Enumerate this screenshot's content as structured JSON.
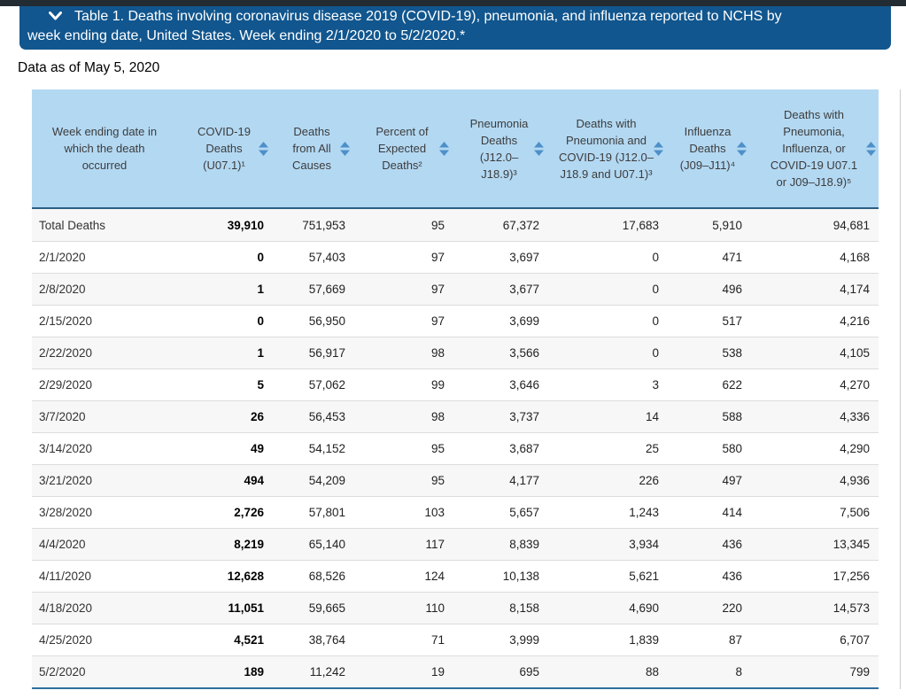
{
  "banner": {
    "title_line1": "Table 1. Deaths involving coronavirus disease 2019 (COVID-19), pneumonia, and influenza reported to NCHS by",
    "title_line2": "week ending date, United States. Week ending 2/1/2020 to 5/2/2020.*",
    "background_color": "#11568e"
  },
  "data_as_of": "Data as of May 5, 2020",
  "table": {
    "columns": [
      {
        "key": "week-ending-date",
        "label": "Week ending date in which the death occurred",
        "sortable": false
      },
      {
        "key": "covid19-deaths",
        "label": "COVID-19 Deaths (U07.1)¹",
        "sortable": true
      },
      {
        "key": "deaths-all-causes",
        "label": "Deaths from All Causes",
        "sortable": true
      },
      {
        "key": "percent-expected-deaths",
        "label": "Percent of Expected Deaths²",
        "sortable": true
      },
      {
        "key": "pneumonia-deaths",
        "label": "Pneumonia Deaths (J12.0–J18.9)³",
        "sortable": true
      },
      {
        "key": "pneumonia-and-covid19-deaths",
        "label": "Deaths with Pneumonia and COVID-19 (J12.0–J18.9 and U07.1)³",
        "sortable": true
      },
      {
        "key": "influenza-deaths",
        "label": "Influenza Deaths (J09–J11)⁴",
        "sortable": true
      },
      {
        "key": "pneumonia-influenza-covid19-deaths",
        "label": "Deaths with Pneumonia, Influenza, or COVID-19 U07.1 or J09–J18.9)⁵",
        "sortable": true
      }
    ],
    "rows": [
      [
        "Total Deaths",
        "39,910",
        "751,953",
        "95",
        "67,372",
        "17,683",
        "5,910",
        "94,681"
      ],
      [
        "2/1/2020",
        "0",
        "57,403",
        "97",
        "3,697",
        "0",
        "471",
        "4,168"
      ],
      [
        "2/8/2020",
        "1",
        "57,669",
        "97",
        "3,677",
        "0",
        "496",
        "4,174"
      ],
      [
        "2/15/2020",
        "0",
        "56,950",
        "97",
        "3,699",
        "0",
        "517",
        "4,216"
      ],
      [
        "2/22/2020",
        "1",
        "56,917",
        "98",
        "3,566",
        "0",
        "538",
        "4,105"
      ],
      [
        "2/29/2020",
        "5",
        "57,062",
        "99",
        "3,646",
        "3",
        "622",
        "4,270"
      ],
      [
        "3/7/2020",
        "26",
        "56,453",
        "98",
        "3,737",
        "14",
        "588",
        "4,336"
      ],
      [
        "3/14/2020",
        "49",
        "54,152",
        "95",
        "3,687",
        "25",
        "580",
        "4,290"
      ],
      [
        "3/21/2020",
        "494",
        "54,209",
        "95",
        "4,177",
        "226",
        "497",
        "4,936"
      ],
      [
        "3/28/2020",
        "2,726",
        "57,801",
        "103",
        "5,657",
        "1,243",
        "414",
        "7,506"
      ],
      [
        "4/4/2020",
        "8,219",
        "65,140",
        "117",
        "8,839",
        "3,934",
        "436",
        "13,345"
      ],
      [
        "4/11/2020",
        "12,628",
        "68,526",
        "124",
        "10,138",
        "5,621",
        "436",
        "17,256"
      ],
      [
        "4/18/2020",
        "11,051",
        "59,665",
        "110",
        "8,158",
        "4,690",
        "220",
        "14,573"
      ],
      [
        "4/25/2020",
        "4,521",
        "38,764",
        "71",
        "3,999",
        "1,839",
        "87",
        "6,707"
      ],
      [
        "5/2/2020",
        "189",
        "11,242",
        "19",
        "695",
        "88",
        "8",
        "799"
      ]
    ]
  },
  "colors": {
    "banner_background": "#11568e",
    "top_strip": "#232b33",
    "table_header_background": "#b3d8f2",
    "sort_icon": "#4d90c9",
    "row_stripe": "#f7f7f7",
    "header_divider": "#2b5f83",
    "table_bottom_border": "#2e6f9f"
  }
}
